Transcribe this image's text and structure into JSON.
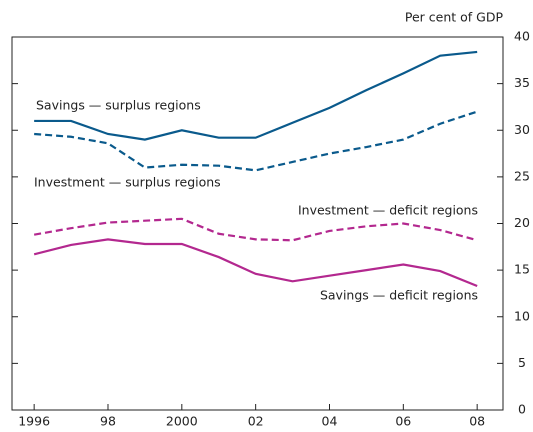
{
  "chart_data": {
    "type": "line",
    "y_axis_label": "Per cent of GDP",
    "x": [
      1996,
      1997,
      1998,
      1999,
      2000,
      2001,
      2002,
      2003,
      2004,
      2005,
      2006,
      2007,
      2008
    ],
    "xlim": [
      1995.4,
      2008.7
    ],
    "xticks": [
      1996,
      {
        "value": 1998,
        "label": "98"
      },
      2000,
      {
        "value": 2002,
        "label": "02"
      },
      {
        "value": 2004,
        "label": "04"
      },
      {
        "value": 2006,
        "label": "06"
      },
      {
        "value": 2008,
        "label": "08"
      }
    ],
    "ylim": [
      0,
      40
    ],
    "yticks": [
      0,
      5,
      10,
      15,
      20,
      25,
      30,
      35,
      40
    ],
    "grid": false,
    "series": [
      {
        "name": "Savings — surplus regions",
        "color": "#0a5a8c",
        "dash": false,
        "values": [
          31,
          31,
          29.6,
          29,
          30,
          29.2,
          29.2,
          30.8,
          32.4,
          34.3,
          36.1,
          38,
          38.4
        ]
      },
      {
        "name": "Investment — surplus regions",
        "color": "#0a5a8c",
        "dash": true,
        "values": [
          29.6,
          29.3,
          28.6,
          26,
          26.3,
          26.2,
          25.7,
          26.6,
          27.5,
          28.2,
          29,
          30.7,
          32
        ]
      },
      {
        "name": "Investment — deficit regions",
        "color": "#b3288f",
        "dash": true,
        "values": [
          18.8,
          19.5,
          20.1,
          20.3,
          20.5,
          18.9,
          18.3,
          18.2,
          19.2,
          19.7,
          20,
          19.3,
          18.2
        ]
      },
      {
        "name": "Savings — deficit regions",
        "color": "#b3288f",
        "dash": false,
        "values": [
          16.7,
          17.7,
          18.3,
          17.8,
          17.8,
          16.4,
          14.6,
          13.8,
          14.4,
          15,
          15.6,
          14.9,
          13.3
        ]
      }
    ]
  }
}
